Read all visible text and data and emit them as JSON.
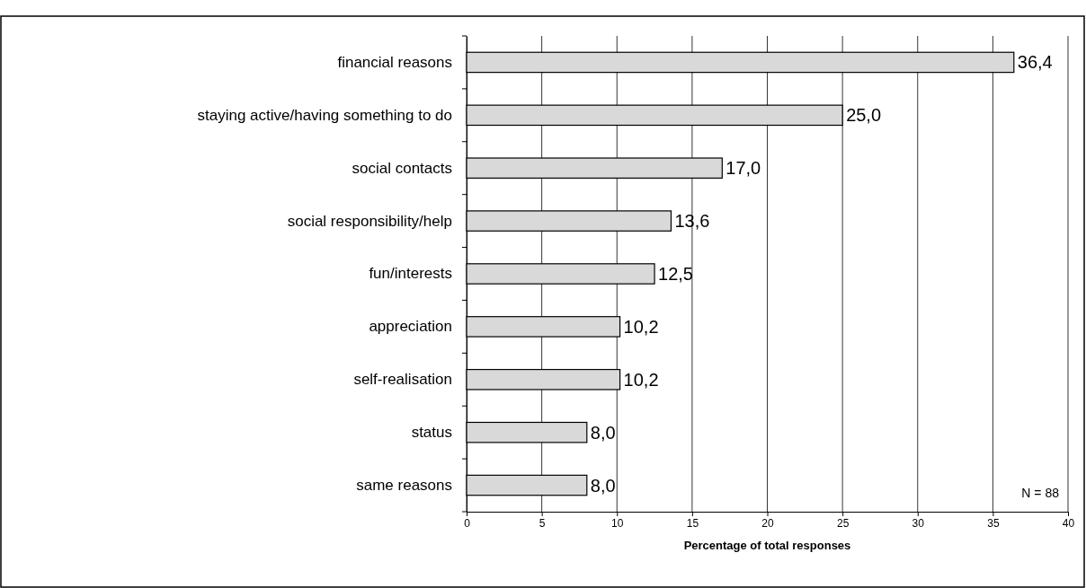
{
  "chart_data": {
    "type": "bar",
    "orientation": "horizontal",
    "xlabel": "Percentage of total responses",
    "categories": [
      "financial reasons",
      "staying active/having something to do",
      "social contacts",
      "social responsibility/help",
      "fun/interests",
      "appreciation",
      "self-realisation",
      "status",
      "same reasons"
    ],
    "values": [
      36.4,
      25.0,
      17.0,
      13.6,
      12.5,
      10.2,
      10.2,
      8.0,
      8.0
    ],
    "value_labels": [
      "36,4",
      "25,0",
      "17,0",
      "13,6",
      "12,5",
      "10,2",
      "10,2",
      "8,0",
      "8,0"
    ],
    "color": "#d9d9d9",
    "xlim": [
      0,
      40
    ],
    "xticks": [
      0,
      5,
      10,
      15,
      20,
      25,
      30,
      35,
      40
    ],
    "grid": "x",
    "annotations": [
      "N = 88"
    ]
  }
}
